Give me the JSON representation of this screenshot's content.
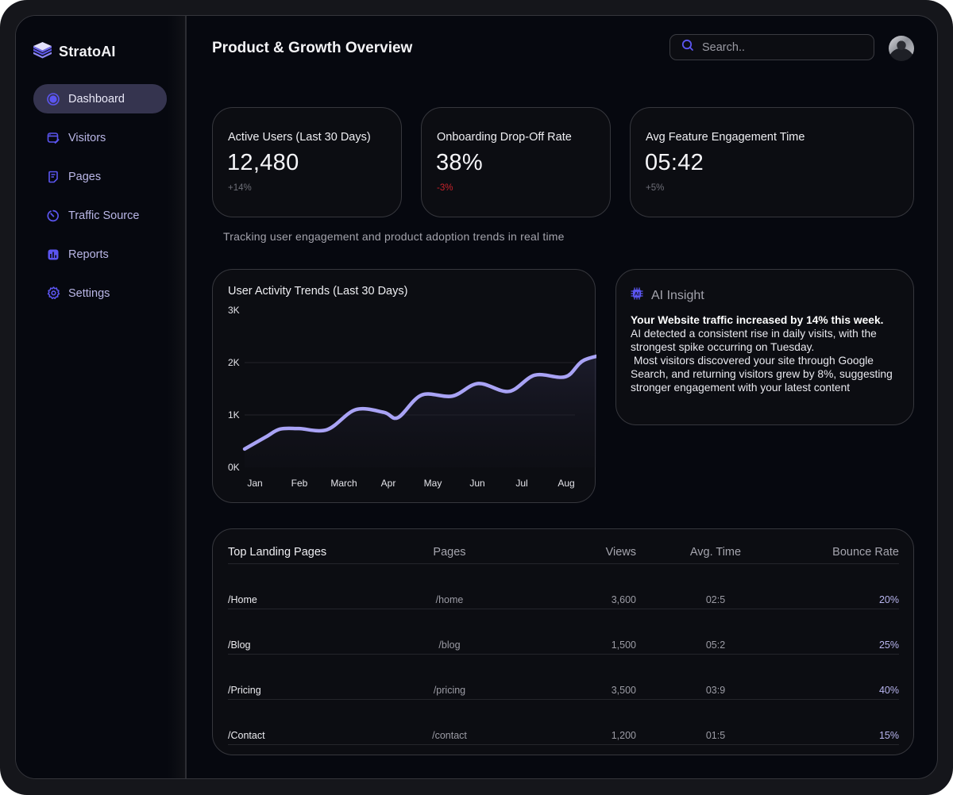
{
  "app": {
    "name": "StratoAI",
    "logo_icon": "layers-stack-icon"
  },
  "sidebar": {
    "items": [
      {
        "label": "Dashboard",
        "icon": "radio-dot-icon",
        "active": true
      },
      {
        "label": "Visitors",
        "icon": "browser-edit-icon",
        "active": false
      },
      {
        "label": "Pages",
        "icon": "document-icon",
        "active": false
      },
      {
        "label": "Traffic Source",
        "icon": "timer-icon",
        "active": false
      },
      {
        "label": "Reports",
        "icon": "bar-chart-icon",
        "active": false
      },
      {
        "label": "Settings",
        "icon": "gear-icon",
        "active": false
      }
    ]
  },
  "header": {
    "title": "Product & Growth Overview",
    "search": {
      "placeholder": "Search..",
      "value": "",
      "icon": "search-icon"
    },
    "avatar": "user-avatar"
  },
  "kpis": [
    {
      "title": "Active Users (Last 30 Days)",
      "value": "12,480",
      "delta": "+14%",
      "delta_trend": "up"
    },
    {
      "title": "Onboarding Drop-Off Rate",
      "value": "38%",
      "delta": "-3%",
      "delta_trend": "down"
    },
    {
      "title": "Avg Feature Engagement Time",
      "value": "05:42",
      "delta": "+5%",
      "delta_trend": "up"
    }
  ],
  "subtitle": "Tracking user engagement and product adoption trends in real time",
  "ai_insight": {
    "title": "AI Insight",
    "icon": "ai-chip-icon",
    "headline": "Your Website traffic increased by 14% this week.",
    "body": [
      "AI detected a consistent rise in daily visits, with the strongest spike occurring on Tuesday.",
      " Most visitors discovered your site through Google Search, and returning visitors grew by 8%, suggesting stronger engagement with your latest content"
    ]
  },
  "landing_pages": {
    "columns": [
      "Top Landing Pages",
      "Pages",
      "Views",
      "Avg. Time",
      "Bounce Rate"
    ],
    "rows": [
      [
        "/Home",
        "/home",
        "3,600",
        "02:5",
        "20%"
      ],
      [
        "/Blog",
        "/blog",
        "1,500",
        "05:2",
        "25%"
      ],
      [
        "/Pricing",
        "/pricing",
        "3,500",
        "03:9",
        "40%"
      ],
      [
        "/Contact",
        "/contact",
        "1,200",
        "01:5",
        "15%"
      ]
    ]
  },
  "colors": {
    "accent": "#4f46e5",
    "line": "#a9a3f5",
    "negative": "#c8232b"
  },
  "chart_data": {
    "type": "line",
    "title": "User Activity Trends (Last 30 Days)",
    "xlabel": "",
    "ylabel": "",
    "categories": [
      "Jan",
      "Feb",
      "March",
      "Apr",
      "May",
      "Jun",
      "Jul",
      "Aug"
    ],
    "x": [
      0,
      0.45,
      0.75,
      1.15,
      1.75,
      2.35,
      2.95,
      3.25,
      3.75,
      4.4,
      4.95,
      5.6,
      6.15,
      6.8,
      7.2,
      7.9
    ],
    "series": [
      {
        "name": "Users",
        "values": [
          350,
          580,
          730,
          740,
          720,
          1100,
          1050,
          950,
          1380,
          1360,
          1600,
          1450,
          1760,
          1730,
          2050,
          2200
        ]
      }
    ],
    "yticks": [
      "0K",
      "1K",
      "2K",
      "3K"
    ],
    "ylim": [
      0,
      3000
    ],
    "grid": true,
    "legend": "none"
  }
}
